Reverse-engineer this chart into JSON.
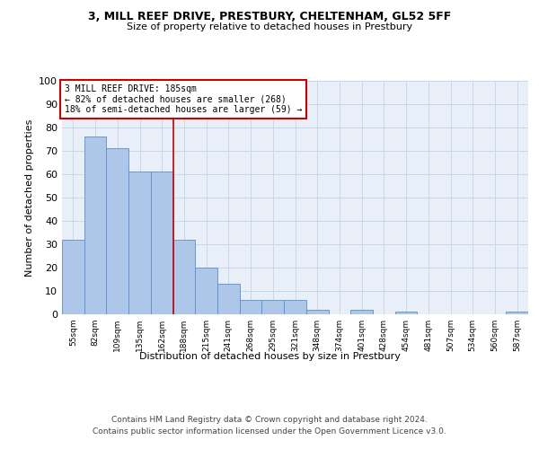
{
  "title": "3, MILL REEF DRIVE, PRESTBURY, CHELTENHAM, GL52 5FF",
  "subtitle": "Size of property relative to detached houses in Prestbury",
  "xlabel": "Distribution of detached houses by size in Prestbury",
  "ylabel": "Number of detached properties",
  "bar_labels": [
    "55sqm",
    "82sqm",
    "109sqm",
    "135sqm",
    "162sqm",
    "188sqm",
    "215sqm",
    "241sqm",
    "268sqm",
    "295sqm",
    "321sqm",
    "348sqm",
    "374sqm",
    "401sqm",
    "428sqm",
    "454sqm",
    "481sqm",
    "507sqm",
    "534sqm",
    "560sqm",
    "587sqm"
  ],
  "bar_values": [
    32,
    76,
    71,
    61,
    61,
    32,
    20,
    13,
    6,
    6,
    6,
    2,
    0,
    2,
    0,
    1,
    0,
    0,
    0,
    0,
    1
  ],
  "bar_color": "#aec6e8",
  "bar_edge_color": "#5b8fc9",
  "property_line_x": 4.5,
  "property_line_label": "3 MILL REEF DRIVE: 185sqm",
  "annotation_line1": "← 82% of detached houses are smaller (268)",
  "annotation_line2": "18% of semi-detached houses are larger (59) →",
  "annotation_box_color": "#ffffff",
  "annotation_box_edge_color": "#cc0000",
  "vline_color": "#cc0000",
  "ylim": [
    0,
    100
  ],
  "yticks": [
    0,
    10,
    20,
    30,
    40,
    50,
    60,
    70,
    80,
    90,
    100
  ],
  "grid_color": "#c8d8e8",
  "bg_color": "#e8eff8",
  "footer_line1": "Contains HM Land Registry data © Crown copyright and database right 2024.",
  "footer_line2": "Contains public sector information licensed under the Open Government Licence v3.0."
}
